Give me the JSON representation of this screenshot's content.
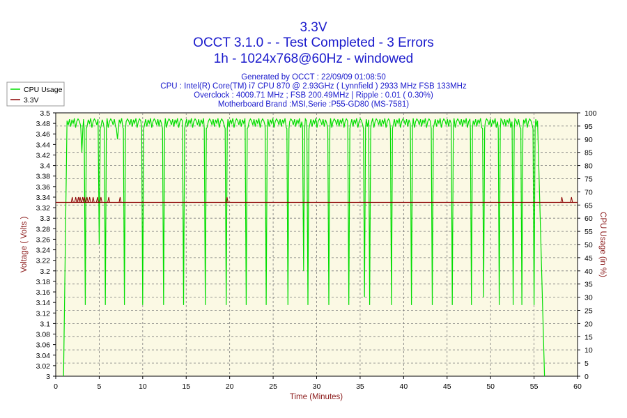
{
  "chart_data": {
    "type": "line",
    "title": "3.3V",
    "subtitle_lines": [
      "OCCT 3.1.0 -  - Test Completed - 3 Errors",
      "1h - 1024x768@60Hz - windowed"
    ],
    "info_lines": [
      "Generated by OCCT : 22/09/09 01:08:50",
      "CPU : Intel(R) Core(TM) i7 CPU 870 @ 2.93GHz ( Lynnfield ) 2933 MHz FSB 133MHz",
      "Overclock : 4009.71 MHz ; FSB 200.49MHz | Ripple : 0.01 ( 0.30%)",
      "Motherboard Brand :MSI,Serie :P55-GD80 (MS-7581)"
    ],
    "xlabel": "Time (Minutes)",
    "ylabel": "Voltage ( Volts )",
    "y2label": "CPU Usage (in %)",
    "xlim": [
      0,
      60
    ],
    "ylim": [
      3.0,
      3.5
    ],
    "y2lim": [
      0,
      100
    ],
    "x_ticks": [
      0,
      5,
      10,
      15,
      20,
      25,
      30,
      35,
      40,
      45,
      50,
      55,
      60
    ],
    "y_ticks": [
      "3",
      "3.02",
      "3.04",
      "3.06",
      "3.08",
      "3.1",
      "3.12",
      "3.14",
      "3.16",
      "3.18",
      "3.2",
      "3.22",
      "3.24",
      "3.26",
      "3.28",
      "3.3",
      "3.32",
      "3.34",
      "3.36",
      "3.38",
      "3.4",
      "3.42",
      "3.44",
      "3.46",
      "3.48",
      "3.5"
    ],
    "y2_ticks": [
      0,
      5,
      10,
      15,
      20,
      25,
      30,
      35,
      40,
      45,
      50,
      55,
      60,
      65,
      70,
      75,
      80,
      85,
      90,
      95,
      100
    ],
    "grid": true,
    "legend_position": "top-left",
    "series": [
      {
        "name": "CPU Usage",
        "axis": "right",
        "color": "#00dd00",
        "baseline": 97,
        "ramp": {
          "start": [
            0.9,
            0
          ],
          "end": [
            1.3,
            97
          ]
        },
        "dips": [
          {
            "x": 3.0,
            "min": 85
          },
          {
            "x": 3.4,
            "min": 27
          },
          {
            "x": 5.0,
            "min": 50
          },
          {
            "x": 5.7,
            "min": 27
          },
          {
            "x": 7.1,
            "min": 90
          },
          {
            "x": 7.9,
            "min": 27
          },
          {
            "x": 10.0,
            "min": 27
          },
          {
            "x": 12.4,
            "min": 27
          },
          {
            "x": 14.7,
            "min": 27
          },
          {
            "x": 17.2,
            "min": 27
          },
          {
            "x": 19.6,
            "min": 27
          },
          {
            "x": 21.9,
            "min": 27
          },
          {
            "x": 24.2,
            "min": 27
          },
          {
            "x": 26.7,
            "min": 27
          },
          {
            "x": 28.5,
            "min": 40
          },
          {
            "x": 29.0,
            "min": 27
          },
          {
            "x": 31.4,
            "min": 27
          },
          {
            "x": 33.7,
            "min": 27
          },
          {
            "x": 35.5,
            "min": 30
          },
          {
            "x": 36.1,
            "min": 27
          },
          {
            "x": 38.6,
            "min": 27
          },
          {
            "x": 40.9,
            "min": 27
          },
          {
            "x": 43.3,
            "min": 27
          },
          {
            "x": 45.6,
            "min": 27
          },
          {
            "x": 47.8,
            "min": 27
          },
          {
            "x": 49.2,
            "min": 30
          },
          {
            "x": 51.0,
            "min": 27
          },
          {
            "x": 52.6,
            "min": 27
          },
          {
            "x": 53.6,
            "min": 27
          },
          {
            "x": 55.0,
            "min": 27
          }
        ],
        "end_drop": {
          "start": [
            55.4,
            97
          ],
          "end": [
            56.2,
            0
          ]
        }
      },
      {
        "name": "3.3V",
        "axis": "left",
        "color": "#8b0000",
        "value": 3.33,
        "spikes": [
          1.9,
          2.3,
          2.6,
          2.8,
          3.1,
          3.3,
          3.6,
          3.9,
          4.3,
          4.8,
          5.2,
          6.1,
          7.4,
          19.7,
          58.2,
          59.3
        ],
        "spike_value": 3.34
      }
    ]
  }
}
